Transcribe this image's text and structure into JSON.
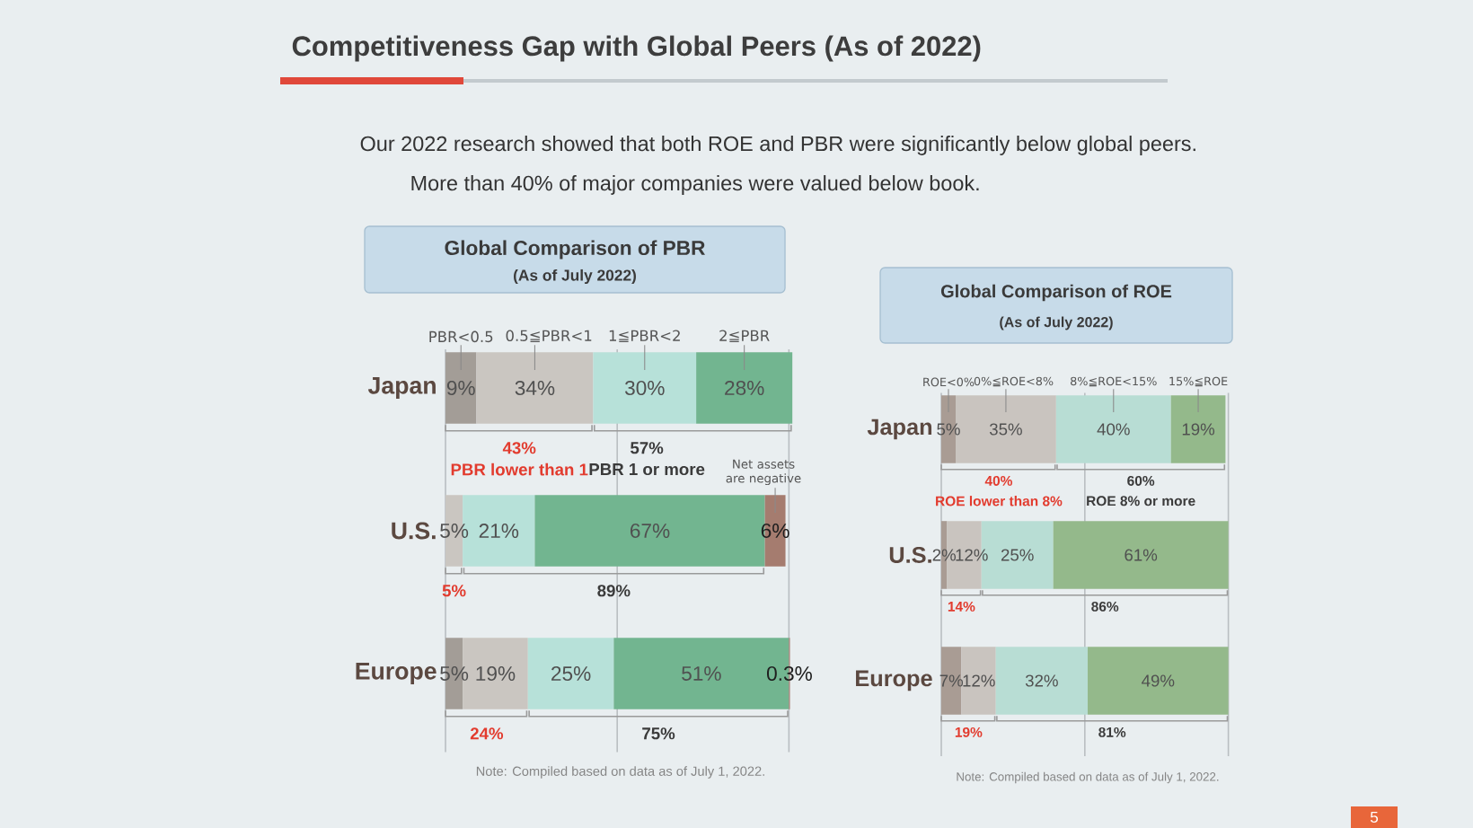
{
  "chart_data": [
    {
      "type": "other",
      "title": "Competitiveness Gap with Global Peers (As of 2022)",
      "annotations": [
        "Our 2022 research showed that both ROE and PBR were significantly below global peers.",
        "More than 40% of major companies were valued below book.",
        "5"
      ]
    },
    {
      "type": "bar",
      "orientation": "horizontal",
      "stacked": true,
      "title": "Global Comparison of PBR",
      "subtitle": "(As of July 2022)",
      "categories": [
        "Japan",
        "U.S.",
        "Europe"
      ],
      "xlim": [
        0,
        102
      ],
      "tick_labels": "y",
      "ref_lines": [
        {
          "axis": "x",
          "value": 0,
          "color": "#b9bec2"
        },
        {
          "axis": "x",
          "value": 50,
          "color": "#b9bec2"
        },
        {
          "axis": "x",
          "value": 100,
          "color": "#b9bec2"
        }
      ],
      "series": [
        {
          "name": "PBR<0.5",
          "color": "#a39d97",
          "values": [
            9,
            null,
            5
          ],
          "value_labels": [
            "9%",
            null,
            "5%"
          ]
        },
        {
          "name": "0.5≦PBR<1",
          "color": "#cac6c1",
          "values": [
            34,
            5,
            19
          ],
          "value_labels": [
            "34%",
            "5%",
            "19%"
          ]
        },
        {
          "name": "1≦PBR<2",
          "color": "#b7e1d9",
          "values": [
            30,
            21,
            25
          ],
          "value_labels": [
            "30%",
            "21%",
            "25%"
          ]
        },
        {
          "name": "2≦PBR",
          "color": "#72b590",
          "values": [
            28,
            67,
            51
          ],
          "value_labels": [
            "28%",
            "67%",
            "51%"
          ]
        },
        {
          "name": "Net assets are negative",
          "color": "#a57c6f",
          "values": [
            null,
            6,
            0.3
          ],
          "value_labels": [
            null,
            "6%",
            "0.3%"
          ]
        }
      ],
      "annotations": [
        "43%",
        "PBR lower than 1",
        "57%",
        "PBR 1 or more",
        "5%",
        "89%",
        "24%",
        "75%",
        "Note: Compiled based on data as of July 1, 2022."
      ]
    },
    {
      "type": "bar",
      "orientation": "horizontal",
      "stacked": true,
      "title": "Global Comparison of ROE",
      "subtitle": "(As of July 2022)",
      "categories": [
        "Japan",
        "U.S.",
        "Europe"
      ],
      "xlim": [
        0,
        102
      ],
      "tick_labels": "y",
      "ref_lines": [
        {
          "axis": "x",
          "value": 0,
          "color": "#b9bec2"
        },
        {
          "axis": "x",
          "value": 50,
          "color": "#b9bec2"
        },
        {
          "axis": "x",
          "value": 100,
          "color": "#b9bec2"
        }
      ],
      "series": [
        {
          "name": "ROE<0%",
          "color": "#a99c94",
          "values": [
            5,
            2,
            7
          ],
          "value_labels": [
            "5%",
            "2%",
            "7%"
          ]
        },
        {
          "name": "0%≦ROE<8%",
          "color": "#c9c4bf",
          "values": [
            35,
            12,
            12
          ],
          "value_labels": [
            "35%",
            "12%",
            "12%"
          ]
        },
        {
          "name": "8%≦ROE<15%",
          "color": "#b8ddd4",
          "values": [
            40,
            25,
            32
          ],
          "value_labels": [
            "40%",
            "25%",
            "32%"
          ]
        },
        {
          "name": "15%≦ROE",
          "color": "#94b98b",
          "values": [
            19,
            61,
            49
          ],
          "value_labels": [
            "19%",
            "61%",
            "49%"
          ]
        }
      ],
      "annotations": [
        "40%",
        "ROE lower than 8%",
        "60%",
        "ROE 8% or more",
        "14%",
        "86%",
        "19%",
        "81%",
        "Note: Compiled based on data as of July 1, 2022."
      ]
    }
  ]
}
